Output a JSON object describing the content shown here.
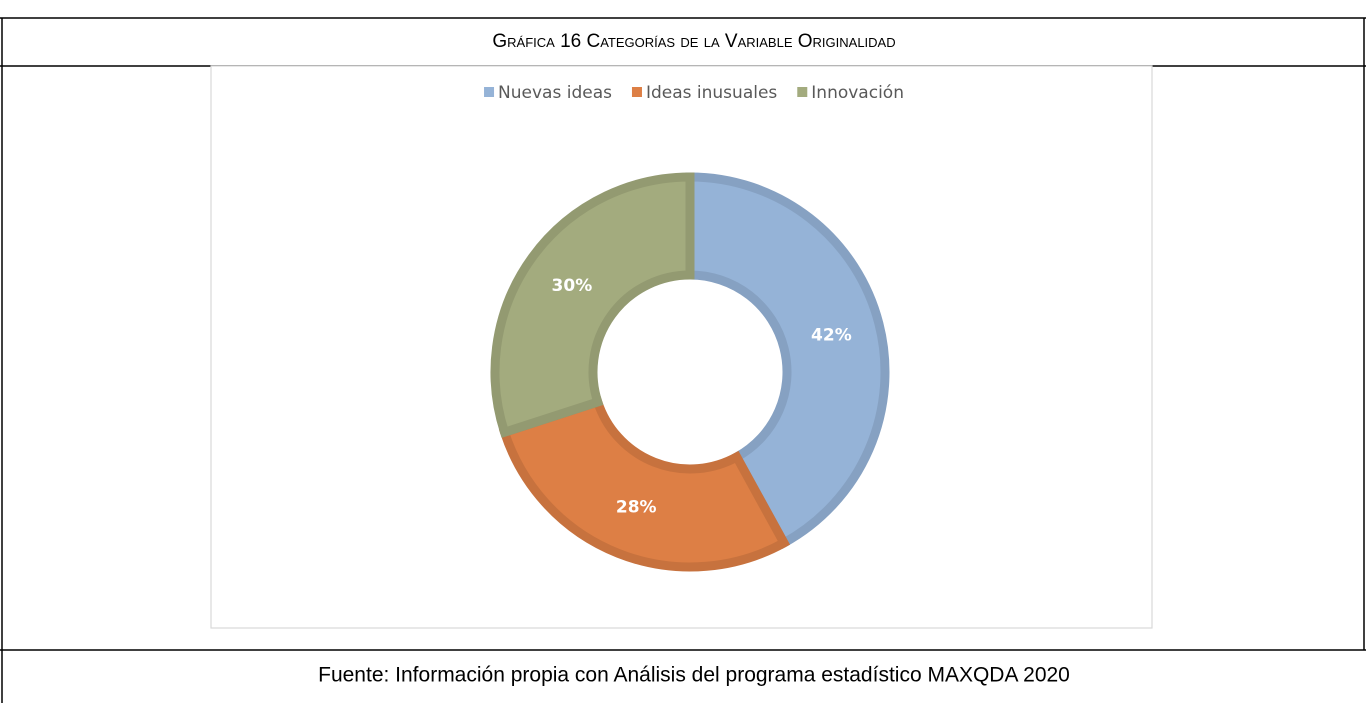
{
  "chart_data": {
    "type": "donut",
    "title": "Gráfica 16 Categorías de la Variable Originalidad",
    "categories": [
      "Nuevas ideas",
      "Ideas inusuales",
      "Innovación"
    ],
    "values": [
      42,
      28,
      30
    ],
    "value_labels": [
      "42%",
      "28%",
      "30%"
    ],
    "colors": [
      "#95b3d7",
      "#dd7f45",
      "#a3ab7e"
    ],
    "legend": "top",
    "source": "Fuente: Información propia con Análisis del programa estadístico MAXQDA 2020"
  }
}
